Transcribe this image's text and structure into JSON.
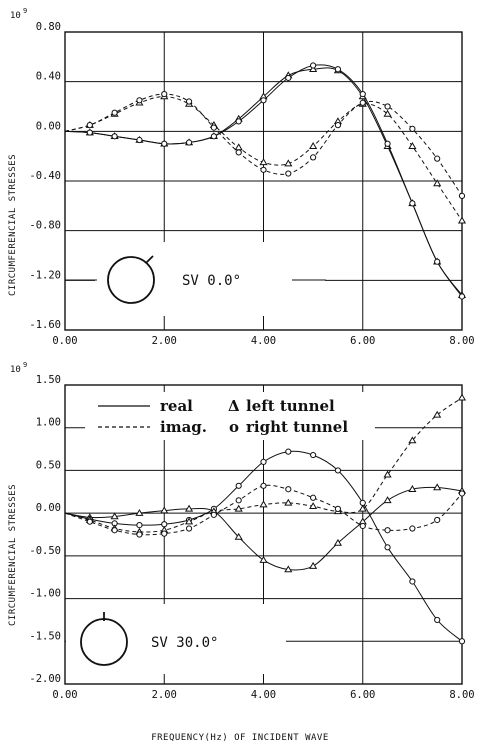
{
  "shared": {
    "xlabel": "FREQUENCY(Hz) OF INCIDENT WAVE",
    "x_ticks": [
      "0.00",
      "2.00",
      "4.00",
      "6.00",
      "8.00"
    ]
  },
  "chart_data": [
    {
      "type": "line",
      "ylabel": "CIRCUMFERENCIAL STRESSES",
      "y_exponent": "10",
      "y_exponent_power": "9",
      "xlim": [
        0,
        8
      ],
      "ylim": [
        -1.6,
        0.8
      ],
      "y_ticks": [
        "0.80",
        "0.40",
        "0.00",
        "-0.40",
        "-0.80",
        "-1.20",
        "-1.60"
      ],
      "annotation": "SV 0.0°",
      "grid": true,
      "series": [
        {
          "style": "solid",
          "marker": "triangle",
          "x": [
            0,
            0.5,
            1,
            1.5,
            2,
            2.5,
            3,
            3.5,
            4,
            4.5,
            5,
            5.5,
            6,
            6.5,
            7,
            7.5,
            8
          ],
          "y": [
            0,
            -0.01,
            -0.04,
            -0.07,
            -0.1,
            -0.09,
            -0.04,
            0.1,
            0.28,
            0.45,
            0.5,
            0.49,
            0.28,
            -0.12,
            -0.58,
            -1.05,
            -1.32
          ]
        },
        {
          "style": "solid",
          "marker": "circle",
          "x": [
            0,
            0.5,
            1,
            1.5,
            2,
            2.5,
            3,
            3.5,
            4,
            4.5,
            5,
            5.5,
            6,
            6.5,
            7,
            7.5,
            8
          ],
          "y": [
            0,
            -0.01,
            -0.04,
            -0.07,
            -0.1,
            -0.09,
            -0.04,
            0.08,
            0.25,
            0.43,
            0.53,
            0.5,
            0.3,
            -0.1,
            -0.58,
            -1.05,
            -1.33
          ]
        },
        {
          "style": "dashed",
          "marker": "triangle",
          "x": [
            0,
            0.5,
            1,
            1.5,
            2,
            2.5,
            3,
            3.5,
            4,
            4.5,
            5,
            5.5,
            6,
            6.5,
            7,
            7.5,
            8
          ],
          "y": [
            0,
            0.05,
            0.14,
            0.23,
            0.28,
            0.22,
            0.05,
            -0.13,
            -0.25,
            -0.26,
            -0.12,
            0.08,
            0.22,
            0.14,
            -0.12,
            -0.42,
            -0.72
          ]
        },
        {
          "style": "dashed",
          "marker": "circle",
          "x": [
            0,
            0.5,
            1,
            1.5,
            2,
            2.5,
            3,
            3.5,
            4,
            4.5,
            5,
            5.5,
            6,
            6.5,
            7,
            7.5,
            8
          ],
          "y": [
            0,
            0.05,
            0.15,
            0.25,
            0.3,
            0.24,
            0.03,
            -0.17,
            -0.31,
            -0.34,
            -0.21,
            0.05,
            0.23,
            0.2,
            0.02,
            -0.22,
            -0.52
          ]
        }
      ]
    },
    {
      "type": "line",
      "ylabel": "CIRCUMFERENCIAL STRESSES",
      "y_exponent": "10",
      "y_exponent_power": "9",
      "xlim": [
        0,
        8
      ],
      "ylim": [
        -2.0,
        1.5
      ],
      "y_ticks": [
        "1.50",
        "1.00",
        "0.50",
        "0.00",
        "-0.50",
        "-1.00",
        "-1.50",
        "-2.00"
      ],
      "annotation": "SV 30.0°",
      "grid": true,
      "legend": {
        "solid_label": "real",
        "dashed_label": "imag.",
        "triangle_label": "left tunnel",
        "circle_label": "right tunnel",
        "triangle_symbol": "Δ",
        "circle_symbol": "o"
      },
      "series": [
        {
          "style": "solid",
          "marker": "triangle",
          "x": [
            0,
            0.5,
            1,
            1.5,
            2,
            2.5,
            3,
            3.5,
            4,
            4.5,
            5,
            5.5,
            6,
            6.5,
            7,
            7.5,
            8
          ],
          "y": [
            0,
            -0.05,
            -0.04,
            0,
            0.03,
            0.05,
            0.02,
            -0.28,
            -0.55,
            -0.66,
            -0.62,
            -0.35,
            -0.1,
            0.15,
            0.28,
            0.3,
            0.26
          ]
        },
        {
          "style": "solid",
          "marker": "circle",
          "x": [
            0,
            0.5,
            1,
            1.5,
            2,
            2.5,
            3,
            3.5,
            4,
            4.5,
            5,
            5.5,
            6,
            6.5,
            7,
            7.5,
            8
          ],
          "y": [
            0,
            -0.07,
            -0.12,
            -0.14,
            -0.13,
            -0.08,
            0.05,
            0.32,
            0.6,
            0.72,
            0.68,
            0.5,
            0.12,
            -0.4,
            -0.8,
            -1.25,
            -1.5
          ]
        },
        {
          "style": "dashed",
          "marker": "triangle",
          "x": [
            0,
            0.5,
            1,
            1.5,
            2,
            2.5,
            3,
            3.5,
            4,
            4.5,
            5,
            5.5,
            6,
            6.5,
            7,
            7.5,
            8
          ],
          "y": [
            0,
            -0.08,
            -0.18,
            -0.22,
            -0.2,
            -0.1,
            0.02,
            0.05,
            0.1,
            0.12,
            0.08,
            0.02,
            0.05,
            0.45,
            0.85,
            1.15,
            1.35
          ]
        },
        {
          "style": "dashed",
          "marker": "circle",
          "x": [
            0,
            0.5,
            1,
            1.5,
            2,
            2.5,
            3,
            3.5,
            4,
            4.5,
            5,
            5.5,
            6,
            6.5,
            7,
            7.5,
            8
          ],
          "y": [
            0,
            -0.1,
            -0.2,
            -0.25,
            -0.24,
            -0.18,
            -0.02,
            0.15,
            0.32,
            0.28,
            0.18,
            0.05,
            -0.15,
            -0.2,
            -0.18,
            -0.08,
            0.23
          ]
        }
      ]
    }
  ]
}
